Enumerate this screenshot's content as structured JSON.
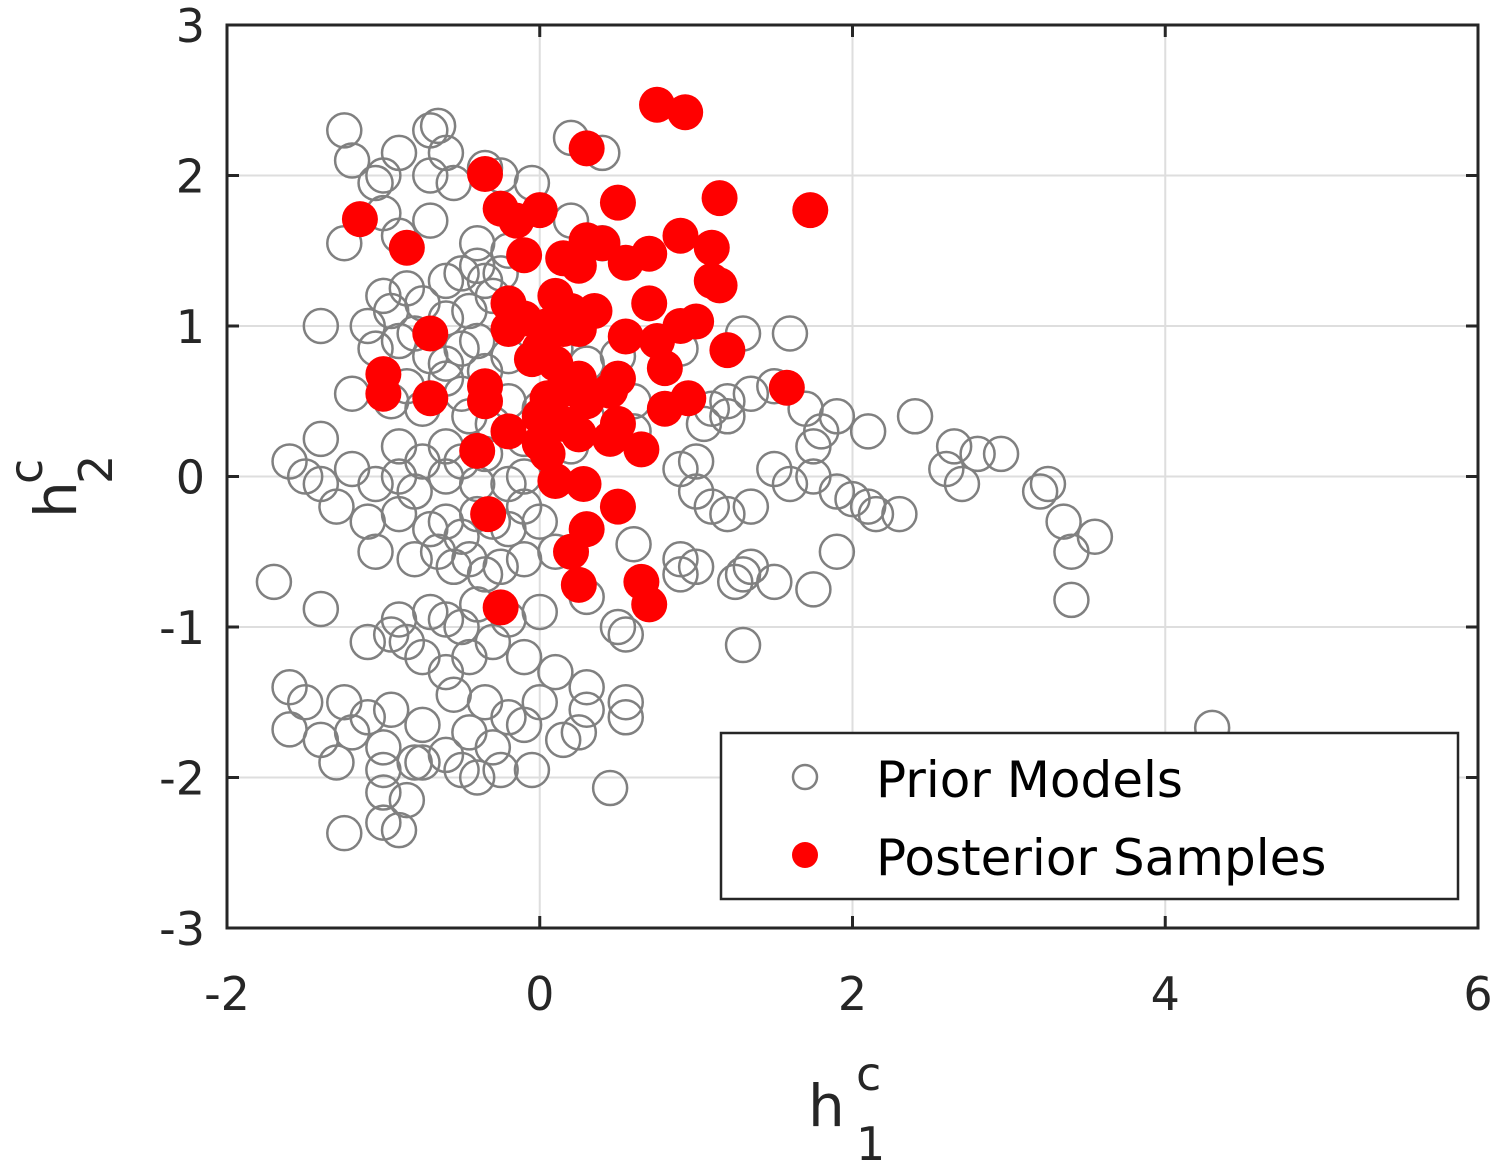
{
  "chart_data": {
    "type": "scatter",
    "title": "",
    "xlabel": {
      "base": "h",
      "sup": "c",
      "sub": "1"
    },
    "ylabel": {
      "base": "h",
      "sup": "c",
      "sub": "2"
    },
    "xlim": [
      -2,
      6
    ],
    "ylim": [
      -3,
      3
    ],
    "xticks": [
      -2,
      0,
      2,
      4,
      6
    ],
    "yticks": [
      -3,
      -2,
      -1,
      0,
      1,
      2,
      3
    ],
    "xtick_labels": [
      "-2",
      "0",
      "2",
      "4",
      "6"
    ],
    "ytick_labels": [
      "-3",
      "-2",
      "-1",
      "0",
      "1",
      "2",
      "3"
    ],
    "grid": true,
    "legend_position": "bottom-right",
    "series": [
      {
        "name": "Prior Models",
        "marker": "open-circle",
        "color": "#808080",
        "points": [
          [
            -1.25,
            2.3
          ],
          [
            -1.2,
            2.1
          ],
          [
            -1.05,
            1.95
          ],
          [
            -1.0,
            2.0
          ],
          [
            -0.9,
            2.15
          ],
          [
            -0.7,
            2.3
          ],
          [
            -0.65,
            2.33
          ],
          [
            -0.6,
            2.15
          ],
          [
            -0.7,
            2.0
          ],
          [
            -0.55,
            1.95
          ],
          [
            -0.35,
            2.05
          ],
          [
            -0.25,
            2.0
          ],
          [
            0.2,
            2.25
          ],
          [
            0.4,
            2.15
          ],
          [
            -0.05,
            1.95
          ],
          [
            -1.25,
            1.55
          ],
          [
            -1.0,
            1.75
          ],
          [
            -0.9,
            1.6
          ],
          [
            -0.7,
            1.7
          ],
          [
            -0.4,
            1.55
          ],
          [
            -0.2,
            1.5
          ],
          [
            0.2,
            1.7
          ],
          [
            0.4,
            1.55
          ],
          [
            -1.0,
            1.2
          ],
          [
            -0.95,
            1.1
          ],
          [
            -0.85,
            1.25
          ],
          [
            -0.75,
            1.15
          ],
          [
            -0.6,
            1.3
          ],
          [
            -0.5,
            1.35
          ],
          [
            -0.4,
            1.4
          ],
          [
            -0.35,
            1.3
          ],
          [
            -0.3,
            1.2
          ],
          [
            -0.25,
            1.35
          ],
          [
            -0.6,
            1.05
          ],
          [
            -0.45,
            1.1
          ],
          [
            -1.4,
            1.0
          ],
          [
            -1.1,
            1.0
          ],
          [
            -1.05,
            0.85
          ],
          [
            -0.9,
            0.9
          ],
          [
            -0.8,
            0.95
          ],
          [
            -0.7,
            0.8
          ],
          [
            -0.6,
            0.75
          ],
          [
            -0.5,
            0.85
          ],
          [
            -0.4,
            0.9
          ],
          [
            -0.35,
            0.7
          ],
          [
            -0.2,
            0.8
          ],
          [
            0.1,
            0.85
          ],
          [
            0.3,
            0.75
          ],
          [
            0.5,
            0.8
          ],
          [
            0.9,
            0.85
          ],
          [
            1.3,
            0.95
          ],
          [
            1.6,
            0.95
          ],
          [
            -1.2,
            0.55
          ],
          [
            -0.95,
            0.5
          ],
          [
            -0.85,
            0.6
          ],
          [
            -0.75,
            0.45
          ],
          [
            -0.6,
            0.65
          ],
          [
            -0.5,
            0.55
          ],
          [
            -0.45,
            0.4
          ],
          [
            -0.3,
            0.35
          ],
          [
            -0.2,
            0.5
          ],
          [
            0.0,
            0.45
          ],
          [
            0.3,
            0.4
          ],
          [
            0.6,
            0.5
          ],
          [
            1.1,
            0.45
          ],
          [
            1.2,
            0.5
          ],
          [
            1.35,
            0.55
          ],
          [
            1.5,
            0.6
          ],
          [
            1.7,
            0.45
          ],
          [
            -1.4,
            0.25
          ],
          [
            -0.9,
            0.2
          ],
          [
            -0.75,
            0.1
          ],
          [
            -0.6,
            0.2
          ],
          [
            -0.5,
            0.1
          ],
          [
            -0.35,
            0.15
          ],
          [
            -0.1,
            0.25
          ],
          [
            0.2,
            0.2
          ],
          [
            0.6,
            0.3
          ],
          [
            1.05,
            0.35
          ],
          [
            1.2,
            0.4
          ],
          [
            1.8,
            0.3
          ],
          [
            1.9,
            0.4
          ],
          [
            2.1,
            0.3
          ],
          [
            2.4,
            0.4
          ],
          [
            1.75,
            0.2
          ],
          [
            -1.6,
            0.1
          ],
          [
            -1.5,
            0.0
          ],
          [
            -1.4,
            -0.05
          ],
          [
            -1.2,
            0.05
          ],
          [
            -1.05,
            -0.05
          ],
          [
            -0.9,
            0.0
          ],
          [
            -0.8,
            -0.1
          ],
          [
            -0.6,
            0.0
          ],
          [
            -0.4,
            -0.05
          ],
          [
            -0.2,
            -0.05
          ],
          [
            -0.1,
            0.0
          ],
          [
            0.9,
            0.05
          ],
          [
            1.0,
            0.1
          ],
          [
            1.5,
            0.05
          ],
          [
            1.6,
            -0.05
          ],
          [
            1.75,
            0.0
          ],
          [
            2.6,
            0.05
          ],
          [
            2.65,
            0.2
          ],
          [
            2.8,
            0.15
          ],
          [
            2.7,
            -0.05
          ],
          [
            2.95,
            0.15
          ],
          [
            -1.3,
            -0.2
          ],
          [
            -1.1,
            -0.3
          ],
          [
            -0.9,
            -0.25
          ],
          [
            -0.7,
            -0.35
          ],
          [
            -0.6,
            -0.3
          ],
          [
            -0.5,
            -0.4
          ],
          [
            -0.4,
            -0.25
          ],
          [
            -0.3,
            -0.3
          ],
          [
            -0.2,
            -0.35
          ],
          [
            -0.1,
            -0.2
          ],
          [
            0.0,
            -0.3
          ],
          [
            1.0,
            -0.1
          ],
          [
            1.1,
            -0.2
          ],
          [
            1.2,
            -0.25
          ],
          [
            1.35,
            -0.2
          ],
          [
            1.9,
            -0.1
          ],
          [
            2.0,
            -0.15
          ],
          [
            2.1,
            -0.2
          ],
          [
            2.15,
            -0.25
          ],
          [
            2.3,
            -0.25
          ],
          [
            3.2,
            -0.1
          ],
          [
            3.25,
            -0.05
          ],
          [
            3.35,
            -0.3
          ],
          [
            3.55,
            -0.4
          ],
          [
            -1.05,
            -0.5
          ],
          [
            -0.8,
            -0.55
          ],
          [
            -0.65,
            -0.5
          ],
          [
            -0.55,
            -0.6
          ],
          [
            -0.45,
            -0.55
          ],
          [
            -0.35,
            -0.65
          ],
          [
            -0.25,
            -0.6
          ],
          [
            -0.1,
            -0.55
          ],
          [
            0.1,
            -0.5
          ],
          [
            0.6,
            -0.45
          ],
          [
            0.9,
            -0.55
          ],
          [
            1.0,
            -0.6
          ],
          [
            1.25,
            -0.7
          ],
          [
            1.35,
            -0.6
          ],
          [
            1.9,
            -0.5
          ],
          [
            3.4,
            -0.5
          ],
          [
            -1.7,
            -0.7
          ],
          [
            -1.4,
            -0.88
          ],
          [
            -0.9,
            -0.95
          ],
          [
            -0.85,
            -1.1
          ],
          [
            -0.7,
            -0.9
          ],
          [
            -0.6,
            -0.95
          ],
          [
            -0.5,
            -1.0
          ],
          [
            -0.4,
            -0.85
          ],
          [
            -0.2,
            -0.95
          ],
          [
            0.0,
            -0.9
          ],
          [
            0.3,
            -0.8
          ],
          [
            0.5,
            -1.0
          ],
          [
            0.9,
            -0.65
          ],
          [
            1.3,
            -0.65
          ],
          [
            1.5,
            -0.7
          ],
          [
            1.75,
            -0.75
          ],
          [
            3.4,
            -0.82
          ],
          [
            -1.1,
            -1.1
          ],
          [
            -0.95,
            -1.05
          ],
          [
            -0.75,
            -1.2
          ],
          [
            -0.6,
            -1.3
          ],
          [
            -0.45,
            -1.2
          ],
          [
            -0.3,
            -1.1
          ],
          [
            -0.1,
            -1.2
          ],
          [
            0.1,
            -1.3
          ],
          [
            0.3,
            -1.4
          ],
          [
            0.55,
            -1.05
          ],
          [
            1.3,
            -1.12
          ],
          [
            -1.6,
            -1.4
          ],
          [
            -1.5,
            -1.5
          ],
          [
            -1.25,
            -1.5
          ],
          [
            -1.1,
            -1.6
          ],
          [
            -0.95,
            -1.55
          ],
          [
            -0.75,
            -1.65
          ],
          [
            -0.55,
            -1.45
          ],
          [
            -0.35,
            -1.5
          ],
          [
            -0.2,
            -1.6
          ],
          [
            0.0,
            -1.5
          ],
          [
            0.3,
            -1.55
          ],
          [
            0.55,
            -1.5
          ],
          [
            0.55,
            -1.6
          ],
          [
            -1.6,
            -1.68
          ],
          [
            -1.4,
            -1.75
          ],
          [
            -1.2,
            -1.7
          ],
          [
            -1.0,
            -1.8
          ],
          [
            -0.75,
            -1.9
          ],
          [
            -0.45,
            -1.7
          ],
          [
            -0.3,
            -1.8
          ],
          [
            -0.1,
            -1.65
          ],
          [
            0.15,
            -1.75
          ],
          [
            0.25,
            -1.7
          ],
          [
            -1.3,
            -1.9
          ],
          [
            -1.0,
            -1.95
          ],
          [
            -0.8,
            -1.9
          ],
          [
            -0.6,
            -1.85
          ],
          [
            -0.5,
            -1.95
          ],
          [
            -0.4,
            -2.0
          ],
          [
            -0.25,
            -1.95
          ],
          [
            -0.05,
            -1.95
          ],
          [
            0.45,
            -2.07
          ],
          [
            4.3,
            -1.67
          ],
          [
            -1.0,
            -2.1
          ],
          [
            -0.85,
            -2.15
          ],
          [
            -1.0,
            -2.3
          ],
          [
            -0.9,
            -2.35
          ],
          [
            -1.25,
            -2.37
          ]
        ]
      },
      {
        "name": "Posterior Samples",
        "marker": "filled-circle",
        "color": "#ff0000",
        "points": [
          [
            0.75,
            2.47
          ],
          [
            0.93,
            2.42
          ],
          [
            0.3,
            2.18
          ],
          [
            -0.35,
            2.01
          ],
          [
            1.15,
            1.85
          ],
          [
            0.5,
            1.82
          ],
          [
            1.73,
            1.77
          ],
          [
            -0.25,
            1.78
          ],
          [
            -0.15,
            1.7
          ],
          [
            0.0,
            1.77
          ],
          [
            -1.15,
            1.71
          ],
          [
            -0.85,
            1.52
          ],
          [
            0.3,
            1.57
          ],
          [
            0.4,
            1.55
          ],
          [
            0.7,
            1.48
          ],
          [
            0.9,
            1.6
          ],
          [
            1.1,
            1.52
          ],
          [
            0.15,
            1.45
          ],
          [
            0.25,
            1.4
          ],
          [
            0.55,
            1.42
          ],
          [
            -0.1,
            1.47
          ],
          [
            1.1,
            1.3
          ],
          [
            1.15,
            1.27
          ],
          [
            0.1,
            1.2
          ],
          [
            -0.2,
            1.15
          ],
          [
            0.2,
            1.1
          ],
          [
            0.35,
            1.1
          ],
          [
            0.7,
            1.15
          ],
          [
            -0.1,
            1.05
          ],
          [
            0.05,
            1.0
          ],
          [
            0.15,
            0.98
          ],
          [
            0.9,
            1.0
          ],
          [
            1.0,
            1.03
          ],
          [
            -0.2,
            0.98
          ],
          [
            0.25,
            0.98
          ],
          [
            -0.7,
            0.95
          ],
          [
            0.55,
            0.93
          ],
          [
            0.75,
            0.9
          ],
          [
            0.0,
            0.85
          ],
          [
            1.2,
            0.84
          ],
          [
            -0.05,
            0.78
          ],
          [
            0.1,
            0.75
          ],
          [
            0.8,
            0.72
          ],
          [
            -1.0,
            0.68
          ],
          [
            0.25,
            0.65
          ],
          [
            0.5,
            0.65
          ],
          [
            -0.35,
            0.6
          ],
          [
            0.15,
            0.58
          ],
          [
            0.45,
            0.57
          ],
          [
            1.58,
            0.59
          ],
          [
            -1.0,
            0.55
          ],
          [
            -0.7,
            0.52
          ],
          [
            -0.35,
            0.5
          ],
          [
            0.05,
            0.52
          ],
          [
            0.3,
            0.5
          ],
          [
            0.95,
            0.52
          ],
          [
            0.8,
            0.45
          ],
          [
            0.0,
            0.4
          ],
          [
            0.15,
            0.35
          ],
          [
            0.5,
            0.35
          ],
          [
            -0.2,
            0.3
          ],
          [
            0.25,
            0.28
          ],
          [
            0.45,
            0.25
          ],
          [
            0.0,
            0.22
          ],
          [
            -0.4,
            0.17
          ],
          [
            0.65,
            0.18
          ],
          [
            0.05,
            0.15
          ],
          [
            0.1,
            -0.03
          ],
          [
            0.28,
            -0.05
          ],
          [
            -0.33,
            -0.25
          ],
          [
            0.5,
            -0.2
          ],
          [
            0.3,
            -0.35
          ],
          [
            0.2,
            -0.5
          ],
          [
            0.65,
            -0.7
          ],
          [
            0.25,
            -0.72
          ],
          [
            0.7,
            -0.85
          ],
          [
            -0.25,
            -0.87
          ]
        ]
      }
    ]
  }
}
